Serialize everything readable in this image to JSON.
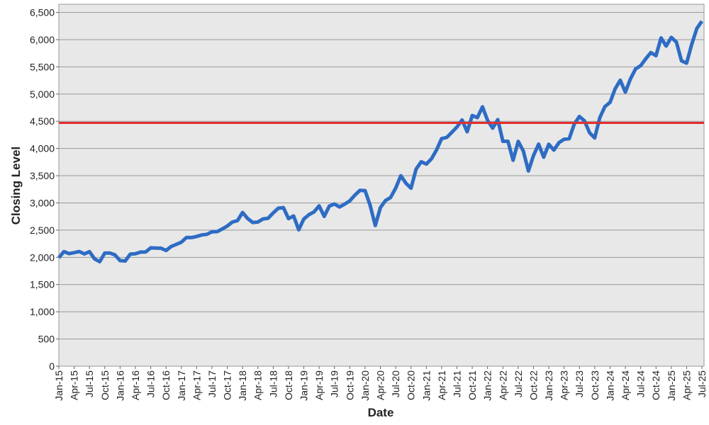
{
  "chart_data": {
    "type": "line",
    "x_label": "Date",
    "y_label": "Closing Level",
    "categories": [
      "Jan-15",
      null,
      null,
      "Apr-15",
      null,
      null,
      "Jul-15",
      null,
      null,
      "Oct-15",
      null,
      null,
      "Jan-16",
      null,
      null,
      "Apr-16",
      null,
      null,
      "Jul-16",
      null,
      null,
      "Oct-16",
      null,
      null,
      "Jan-17",
      null,
      null,
      "Apr-17",
      null,
      null,
      "Jul-17",
      null,
      null,
      "Oct-17",
      null,
      null,
      "Jan-18",
      null,
      null,
      "Apr-18",
      null,
      null,
      "Jul-18",
      null,
      null,
      "Oct-18",
      null,
      null,
      "Jan-19",
      null,
      null,
      "Apr-19",
      null,
      null,
      "Jul-19",
      null,
      null,
      "Oct-19",
      null,
      null,
      "Jan-20",
      null,
      null,
      "Apr-20",
      null,
      null,
      "Jul-20",
      null,
      null,
      "Oct-20",
      null,
      null,
      "Jan-21",
      null,
      null,
      "Apr-21",
      null,
      null,
      "Jul-21",
      null,
      null,
      "Oct-21",
      null,
      null,
      "Jan-22",
      null,
      null,
      "Apr-22",
      null,
      null,
      "Jul-22",
      null,
      null,
      "Oct-22",
      null,
      null,
      "Jan-23",
      null,
      null,
      "Apr-23",
      null,
      null,
      "Jul-23",
      null,
      null,
      "Oct-23",
      null,
      null,
      "Jan-24",
      null,
      null,
      "Apr-24",
      null,
      null,
      "Jul-24",
      null,
      null,
      "Oct-24",
      null,
      null,
      "Jan-25",
      null,
      null,
      "Apr-25",
      null,
      null,
      "Jul-25"
    ],
    "values": [
      1995,
      2105,
      2068,
      2086,
      2107,
      2063,
      2104,
      1972,
      1920,
      2079,
      2080,
      2044,
      1940,
      1932,
      2060,
      2065,
      2097,
      2099,
      2174,
      2171,
      2168,
      2126,
      2199,
      2239,
      2279,
      2364,
      2363,
      2384,
      2412,
      2423,
      2470,
      2472,
      2519,
      2575,
      2648,
      2674,
      2824,
      2714,
      2641,
      2648,
      2705,
      2718,
      2816,
      2902,
      2914,
      2712,
      2760,
      2507,
      2704,
      2784,
      2834,
      2946,
      2752,
      2942,
      2980,
      2926,
      2977,
      3038,
      3141,
      3231,
      3226,
      2954,
      2585,
      2912,
      3044,
      3100,
      3271,
      3500,
      3363,
      3270,
      3622,
      3756,
      3714,
      3811,
      3973,
      4181,
      4204,
      4298,
      4395,
      4523,
      4308,
      4605,
      4567,
      4766,
      4516,
      4374,
      4530,
      4132,
      4132,
      3785,
      4130,
      3955,
      3586,
      3872,
      4080,
      3840,
      4077,
      3970,
      4109,
      4169,
      4180,
      4450,
      4589,
      4508,
      4288,
      4194,
      4568,
      4770,
      4846,
      5096,
      5254,
      5036,
      5278,
      5460,
      5522,
      5648,
      5762,
      5705,
      6032,
      5882,
      6041,
      5955,
      5612,
      5569,
      5912,
      6205,
      6339
    ],
    "color": "#2e6cc4",
    "reference_line": {
      "value": 4470,
      "color": "#e03030"
    },
    "ylim": [
      0,
      6650
    ],
    "yticks": [
      0,
      {
        "value": 500,
        "label": "500"
      },
      {
        "value": 1000,
        "label": "1,000"
      },
      {
        "value": 1500,
        "label": "1,500"
      },
      {
        "value": 2000,
        "label": "2,000"
      },
      {
        "value": 2500,
        "label": "2,500"
      },
      {
        "value": 3000,
        "label": "3,000"
      },
      {
        "value": 3500,
        "label": "3,500"
      },
      {
        "value": 4000,
        "label": "4,000"
      },
      {
        "value": 4500,
        "label": "4,500"
      },
      {
        "value": 5000,
        "label": "5,000"
      },
      {
        "value": 5500,
        "label": "5,500"
      },
      {
        "value": 6000,
        "label": "6,000"
      },
      {
        "value": 6500,
        "label": "6,500"
      }
    ],
    "grid": true
  }
}
